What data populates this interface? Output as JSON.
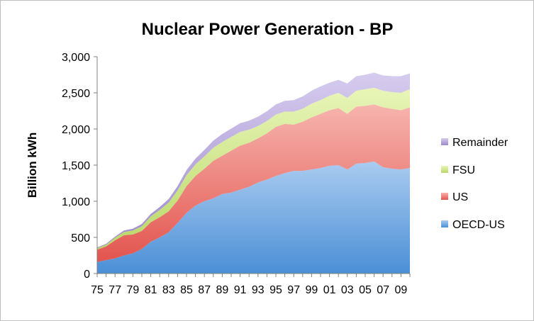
{
  "chart_data": {
    "type": "area",
    "stacked": true,
    "title": "Nuclear Power Generation - BP",
    "xlabel": "",
    "ylabel": "Billion kWh",
    "ylim": [
      0,
      3000
    ],
    "yticks": [
      "0",
      "500",
      "1,000",
      "1,500",
      "2,000",
      "2,500",
      "3,000"
    ],
    "ytick_values": [
      0,
      500,
      1000,
      1500,
      2000,
      2500,
      3000
    ],
    "x": [
      "75",
      "76",
      "77",
      "78",
      "79",
      "80",
      "81",
      "82",
      "83",
      "84",
      "85",
      "86",
      "87",
      "88",
      "89",
      "90",
      "91",
      "92",
      "93",
      "94",
      "95",
      "96",
      "97",
      "98",
      "99",
      "00",
      "01",
      "02",
      "03",
      "04",
      "05",
      "06",
      "07",
      "08",
      "09",
      "10"
    ],
    "xtick_labels": [
      "75",
      "77",
      "79",
      "81",
      "83",
      "85",
      "87",
      "89",
      "91",
      "93",
      "95",
      "97",
      "99",
      "01",
      "03",
      "05",
      "07",
      "09"
    ],
    "grid": false,
    "legend_position": "right",
    "series": [
      {
        "name": "OECD-US",
        "color": "#5b9bd5",
        "values": [
          160,
          185,
          210,
          250,
          280,
          340,
          440,
          500,
          570,
          700,
          840,
          940,
          1000,
          1040,
          1100,
          1120,
          1160,
          1200,
          1260,
          1300,
          1350,
          1390,
          1420,
          1420,
          1440,
          1460,
          1490,
          1500,
          1440,
          1520,
          1530,
          1550,
          1470,
          1450,
          1440,
          1460
        ]
      },
      {
        "name": "US",
        "color": "#e8605a",
        "values": [
          170,
          190,
          250,
          280,
          260,
          250,
          270,
          280,
          290,
          310,
          370,
          410,
          450,
          520,
          530,
          580,
          610,
          610,
          610,
          640,
          680,
          680,
          640,
          680,
          720,
          750,
          770,
          790,
          770,
          790,
          790,
          790,
          830,
          830,
          820,
          840
        ]
      },
      {
        "name": "FSU",
        "color": "#c6e07a",
        "values": [
          20,
          25,
          35,
          45,
          55,
          65,
          80,
          100,
          120,
          140,
          150,
          160,
          170,
          180,
          190,
          190,
          190,
          180,
          170,
          170,
          170,
          170,
          180,
          180,
          190,
          190,
          200,
          210,
          220,
          220,
          230,
          230,
          230,
          230,
          240,
          250
        ]
      },
      {
        "name": "Remainder",
        "color": "#a794cf",
        "values": [
          10,
          10,
          15,
          20,
          25,
          30,
          35,
          40,
          50,
          60,
          70,
          80,
          90,
          100,
          110,
          115,
          120,
          125,
          130,
          135,
          140,
          150,
          160,
          170,
          180,
          190,
          180,
          180,
          200,
          200,
          200,
          210,
          210,
          220,
          230,
          220
        ]
      }
    ],
    "legend_order": [
      "Remainder",
      "FSU",
      "US",
      "OECD-US"
    ]
  }
}
